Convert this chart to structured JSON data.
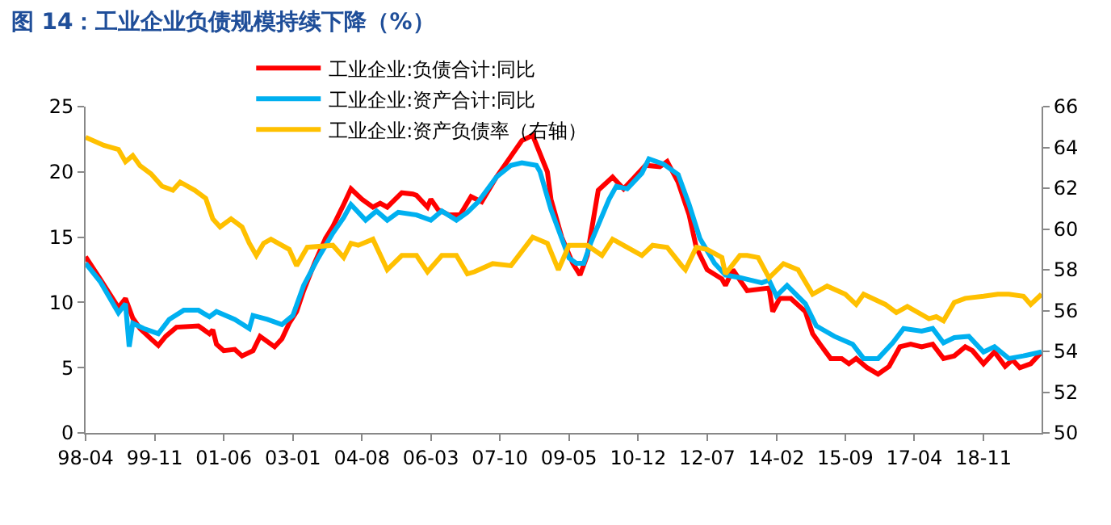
{
  "chart_data": {
    "type": "line",
    "title": "图 14：工业企业负债规模持续下降（%）",
    "legend": "top",
    "xlim": [
      "1998-04",
      "2020-03"
    ],
    "xticks": [
      {
        "value": "1998-04",
        "label": "98-04"
      },
      {
        "value": "1999-11",
        "label": "99-11"
      },
      {
        "value": "2001-06",
        "label": "01-06"
      },
      {
        "value": "2003-01",
        "label": "03-01"
      },
      {
        "value": "2004-08",
        "label": "04-08"
      },
      {
        "value": "2006-03",
        "label": "06-03"
      },
      {
        "value": "2007-10",
        "label": "07-10"
      },
      {
        "value": "2009-05",
        "label": "09-05"
      },
      {
        "value": "2010-12",
        "label": "10-12"
      },
      {
        "value": "2012-07",
        "label": "12-07"
      },
      {
        "value": "2014-02",
        "label": "14-02"
      },
      {
        "value": "2015-09",
        "label": "15-09"
      },
      {
        "value": "2017-04",
        "label": "17-04"
      },
      {
        "value": "2018-11",
        "label": "18-11"
      }
    ],
    "ylim": [
      0,
      25
    ],
    "yticks": [
      0,
      5,
      10,
      15,
      20,
      25
    ],
    "y2lim": [
      50,
      66
    ],
    "y2ticks": [
      50,
      52,
      54,
      56,
      58,
      60,
      62,
      64,
      66
    ],
    "series": [
      {
        "name": "工业企业:负债合计:同比",
        "color": "#ff0000",
        "x": [
          "1998-04",
          "1998-08",
          "1999-01",
          "1999-03",
          "1999-05",
          "1999-07",
          "1999-10",
          "1999-12",
          "2000-02",
          "2000-05",
          "2000-11",
          "2001-02",
          "2001-03",
          "2001-04",
          "2001-06",
          "2001-09",
          "2001-11",
          "2002-02",
          "2002-04",
          "2002-06",
          "2002-08",
          "2002-10",
          "2002-12",
          "2003-02",
          "2003-04",
          "2003-07",
          "2003-10",
          "2003-12",
          "2004-03",
          "2004-05",
          "2004-08",
          "2004-11",
          "2005-01",
          "2005-03",
          "2005-07",
          "2005-10",
          "2005-11",
          "2006-02",
          "2006-03",
          "2006-05",
          "2006-08",
          "2006-11",
          "2007-02",
          "2007-05",
          "2007-09",
          "2008-01",
          "2008-04",
          "2008-07",
          "2008-11",
          "2008-12",
          "2009-03",
          "2009-06",
          "2009-08",
          "2009-10",
          "2010-01",
          "2010-05",
          "2010-08",
          "2010-11",
          "2011-02",
          "2011-06",
          "2011-08",
          "2011-11",
          "2012-02",
          "2012-04",
          "2012-07",
          "2012-11",
          "2012-12",
          "2013-02",
          "2013-06",
          "2013-12",
          "2014-01",
          "2014-03",
          "2014-06",
          "2014-10",
          "2014-12",
          "2015-02",
          "2015-05",
          "2015-08",
          "2015-10",
          "2015-12",
          "2016-03",
          "2016-06",
          "2016-09",
          "2016-12",
          "2017-03",
          "2017-06",
          "2017-09",
          "2017-12",
          "2018-03",
          "2018-06",
          "2018-08",
          "2018-11",
          "2019-02",
          "2019-05",
          "2019-07",
          "2019-09",
          "2019-12",
          "2020-03"
        ],
        "values": [
          13.5,
          11.8,
          9.6,
          10.3,
          8.8,
          8.0,
          7.2,
          6.7,
          7.4,
          8.1,
          8.2,
          7.6,
          7.9,
          6.8,
          6.3,
          6.4,
          5.9,
          6.3,
          7.4,
          7.0,
          6.6,
          7.2,
          8.4,
          9.3,
          10.9,
          13.0,
          14.9,
          15.8,
          17.5,
          18.7,
          17.9,
          17.3,
          17.6,
          17.3,
          18.4,
          18.3,
          18.2,
          17.3,
          17.9,
          17.1,
          16.7,
          16.7,
          18.1,
          17.7,
          19.6,
          21.2,
          22.4,
          22.8,
          20.0,
          17.9,
          15.0,
          13.0,
          12.1,
          13.6,
          18.6,
          19.6,
          18.7,
          19.6,
          20.5,
          20.4,
          20.8,
          19.2,
          16.7,
          14.2,
          12.5,
          11.8,
          11.3,
          12.5,
          10.9,
          11.1,
          9.3,
          10.3,
          10.3,
          9.3,
          7.6,
          6.8,
          5.7,
          5.7,
          5.3,
          5.7,
          5.0,
          4.5,
          5.1,
          6.6,
          6.8,
          6.6,
          6.8,
          5.7,
          5.9,
          6.6,
          6.3,
          5.3,
          6.2,
          5.1,
          5.6,
          5.0,
          5.3,
          6.2
        ]
      },
      {
        "name": "工业企业:资产合计:同比",
        "color": "#00b0f0",
        "x": [
          "1998-04",
          "1998-08",
          "1999-01",
          "1999-03",
          "1999-04",
          "1999-05",
          "1999-08",
          "1999-12",
          "2000-03",
          "2000-07",
          "2000-11",
          "2001-02",
          "2001-04",
          "2001-09",
          "2002-01",
          "2002-02",
          "2002-06",
          "2002-10",
          "2003-01",
          "2003-04",
          "2003-08",
          "2003-12",
          "2004-03",
          "2004-05",
          "2004-09",
          "2004-12",
          "2005-03",
          "2005-06",
          "2005-11",
          "2006-03",
          "2006-06",
          "2006-10",
          "2007-01",
          "2007-04",
          "2007-09",
          "2008-01",
          "2008-04",
          "2008-08",
          "2008-09",
          "2008-12",
          "2009-05",
          "2009-07",
          "2009-09",
          "2009-11",
          "2010-04",
          "2010-06",
          "2010-09",
          "2011-01",
          "2011-03",
          "2011-07",
          "2011-11",
          "2012-02",
          "2012-05",
          "2012-09",
          "2012-12",
          "2013-04",
          "2013-10",
          "2013-12",
          "2014-02",
          "2014-05",
          "2014-10",
          "2015-01",
          "2015-06",
          "2015-11",
          "2016-02",
          "2016-06",
          "2016-10",
          "2017-01",
          "2017-06",
          "2017-09",
          "2017-12",
          "2018-03",
          "2018-07",
          "2018-11",
          "2019-02",
          "2019-06",
          "2019-10",
          "2020-03"
        ],
        "values": [
          13.0,
          11.6,
          9.2,
          9.9,
          6.6,
          8.4,
          8.0,
          7.6,
          8.7,
          9.4,
          9.4,
          8.9,
          9.3,
          8.7,
          8.0,
          9.0,
          8.7,
          8.3,
          9.0,
          11.3,
          13.4,
          15.3,
          16.5,
          17.5,
          16.3,
          17.0,
          16.3,
          16.9,
          16.7,
          16.3,
          17.0,
          16.3,
          16.9,
          17.7,
          19.6,
          20.5,
          20.7,
          20.5,
          20.0,
          17.1,
          13.4,
          13.0,
          13.0,
          14.6,
          17.9,
          18.9,
          18.7,
          19.9,
          21.0,
          20.6,
          19.8,
          17.5,
          14.9,
          13.0,
          12.1,
          11.9,
          11.5,
          11.7,
          10.5,
          11.3,
          9.9,
          8.2,
          7.4,
          6.8,
          5.7,
          5.7,
          6.9,
          8.0,
          7.8,
          8.0,
          6.9,
          7.3,
          7.4,
          6.2,
          6.6,
          5.7,
          5.9,
          6.2
        ]
      },
      {
        "name": "工业企业:资产负债率（右轴）",
        "color": "#ffc000",
        "axis": "y2",
        "x": [
          "1998-04",
          "1998-09",
          "1999-01",
          "1999-03",
          "1999-05",
          "1999-07",
          "1999-10",
          "2000-01",
          "2000-04",
          "2000-06",
          "2000-10",
          "2001-01",
          "2001-03",
          "2001-05",
          "2001-08",
          "2001-11",
          "2002-01",
          "2002-03",
          "2002-05",
          "2002-07",
          "2002-12",
          "2003-02",
          "2003-05",
          "2003-12",
          "2004-03",
          "2004-05",
          "2004-07",
          "2004-11",
          "2005-03",
          "2005-07",
          "2005-11",
          "2006-02",
          "2006-06",
          "2006-10",
          "2007-01",
          "2007-03",
          "2007-08",
          "2008-01",
          "2008-07",
          "2008-11",
          "2009-02",
          "2009-05",
          "2009-10",
          "2010-02",
          "2010-05",
          "2011-01",
          "2011-04",
          "2011-08",
          "2011-12",
          "2012-01",
          "2012-04",
          "2012-07",
          "2012-11",
          "2012-12",
          "2013-04",
          "2013-06",
          "2013-09",
          "2013-12",
          "2014-04",
          "2014-08",
          "2014-12",
          "2015-04",
          "2015-09",
          "2015-12",
          "2016-02",
          "2016-08",
          "2016-11",
          "2017-02",
          "2017-08",
          "2017-10",
          "2017-12",
          "2018-03",
          "2018-06",
          "2018-11",
          "2019-03",
          "2019-06",
          "2019-10",
          "2019-12",
          "2020-03"
        ],
        "values": [
          64.5,
          64.1,
          63.9,
          63.3,
          63.6,
          63.1,
          62.7,
          62.1,
          61.9,
          62.3,
          61.9,
          61.5,
          60.5,
          60.1,
          60.5,
          60.1,
          59.3,
          58.7,
          59.3,
          59.5,
          59.0,
          58.2,
          59.1,
          59.2,
          58.6,
          59.3,
          59.2,
          59.5,
          58.0,
          58.7,
          58.7,
          57.9,
          58.7,
          58.7,
          57.8,
          57.9,
          58.3,
          58.2,
          59.6,
          59.3,
          58.0,
          59.2,
          59.2,
          58.7,
          59.5,
          58.7,
          59.2,
          59.1,
          58.2,
          58.0,
          59.1,
          59.0,
          58.6,
          57.8,
          58.7,
          58.7,
          58.6,
          57.6,
          58.3,
          58.0,
          56.8,
          57.2,
          56.8,
          56.3,
          56.8,
          56.3,
          55.9,
          56.2,
          55.6,
          55.7,
          55.5,
          56.4,
          56.6,
          56.7,
          56.8,
          56.8,
          56.7,
          56.3,
          56.8
        ]
      }
    ]
  }
}
